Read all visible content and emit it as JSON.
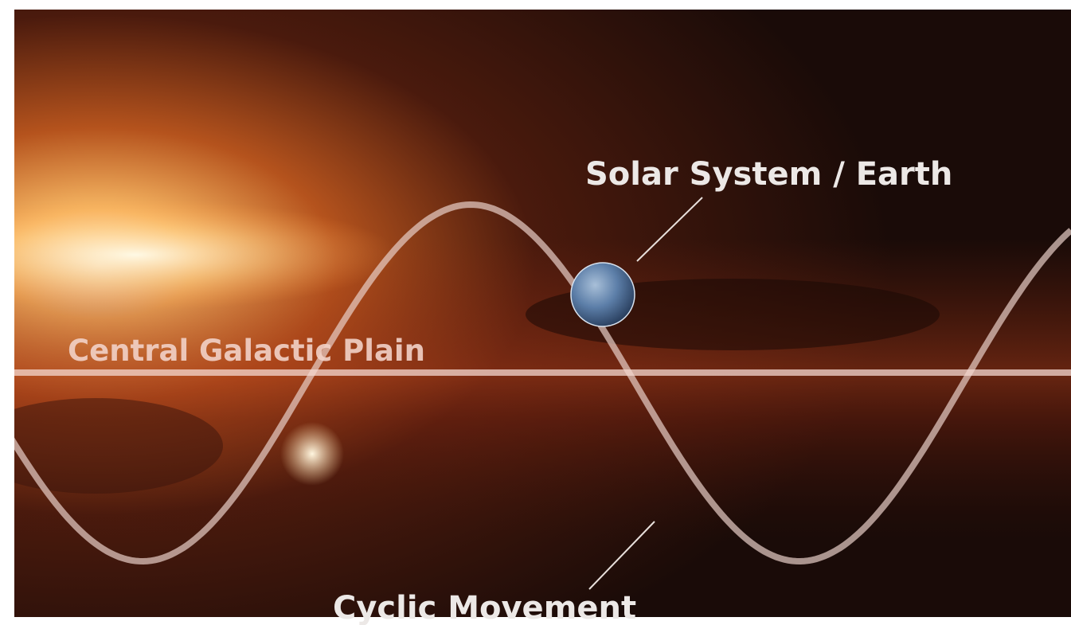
{
  "labels": {
    "earth": "Solar System / Earth",
    "plane": "Central Galactic Plain",
    "movement": "Cyclic Movement"
  }
}
